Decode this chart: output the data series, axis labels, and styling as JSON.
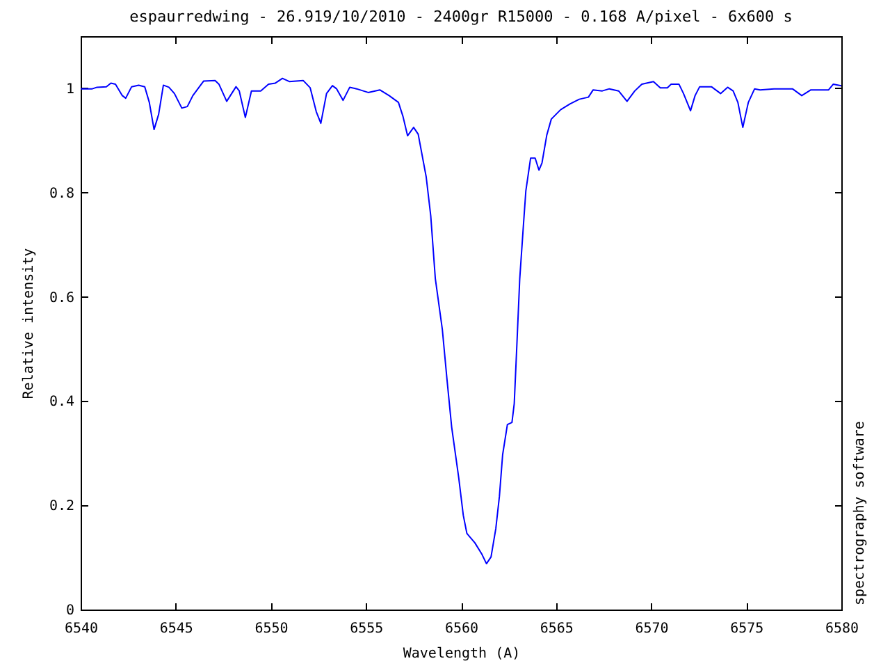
{
  "chart_data": {
    "type": "line",
    "title": "espaurredwing - 26.919/10/2010 - 2400gr R15000 - 0.168 A/pixel - 6x600 s",
    "xlabel": "Wavelength (A)",
    "ylabel": "Relative intensity",
    "annotations": [
      "spectrography software"
    ],
    "x": [
      6540.0,
      6540.61,
      6540.86,
      6541.35,
      6541.59,
      6541.83,
      6542.19,
      6542.37,
      6542.68,
      6543.05,
      6543.37,
      6543.61,
      6543.86,
      6544.1,
      6544.35,
      6544.64,
      6544.93,
      6545.32,
      6545.61,
      6545.9,
      6546.47,
      6547.07,
      6547.27,
      6547.68,
      6548.17,
      6548.34,
      6548.66,
      6548.98,
      6549.47,
      6549.88,
      6550.24,
      6550.61,
      6550.97,
      6551.7,
      6552.07,
      6552.39,
      6552.63,
      6552.93,
      6553.24,
      6553.46,
      6553.8,
      6554.15,
      6554.51,
      6555.12,
      6555.73,
      6556.22,
      6556.71,
      6556.95,
      6557.19,
      6557.51,
      6557.75,
      6558.17,
      6558.41,
      6558.65,
      6559.02,
      6559.27,
      6559.51,
      6559.88,
      6560.12,
      6560.31,
      6560.73,
      6561.1,
      6561.34,
      6561.58,
      6561.83,
      6562.02,
      6562.19,
      6562.44,
      6562.68,
      6562.8,
      6562.93,
      6563.09,
      6563.29,
      6563.41,
      6563.66,
      6563.9,
      6564.1,
      6564.26,
      6564.51,
      6564.75,
      6565.24,
      6565.73,
      6566.22,
      6566.7,
      6566.95,
      6567.43,
      6567.8,
      6568.29,
      6568.73,
      6569.14,
      6569.51,
      6570.12,
      6570.48,
      6570.85,
      6571.05,
      6571.46,
      6571.7,
      6572.07,
      6572.31,
      6572.55,
      6573.17,
      6573.65,
      6574.02,
      6574.31,
      6574.56,
      6574.82,
      6575.11,
      6575.44,
      6575.73,
      6576.46,
      6577.43,
      6577.92,
      6578.4,
      6579.33,
      6579.58,
      6579.99
    ],
    "series": [
      {
        "color": "#0000ff",
        "values": [
          0.999,
          0.999,
          1.002,
          1.003,
          1.01,
          1.008,
          0.986,
          0.981,
          1.003,
          1.006,
          1.003,
          0.973,
          0.921,
          0.95,
          1.006,
          1.002,
          0.99,
          0.962,
          0.965,
          0.986,
          1.014,
          1.015,
          1.008,
          0.975,
          1.003,
          0.995,
          0.944,
          0.995,
          0.995,
          1.008,
          1.01,
          1.019,
          1.013,
          1.015,
          1.001,
          0.955,
          0.933,
          0.99,
          1.005,
          0.999,
          0.977,
          1.002,
          0.999,
          0.992,
          0.997,
          0.986,
          0.973,
          0.946,
          0.909,
          0.925,
          0.912,
          0.83,
          0.755,
          0.635,
          0.537,
          0.439,
          0.35,
          0.253,
          0.181,
          0.146,
          0.128,
          0.106,
          0.088,
          0.101,
          0.155,
          0.217,
          0.297,
          0.355,
          0.359,
          0.395,
          0.501,
          0.635,
          0.741,
          0.803,
          0.866,
          0.866,
          0.843,
          0.857,
          0.91,
          0.941,
          0.959,
          0.97,
          0.979,
          0.983,
          0.997,
          0.995,
          0.999,
          0.995,
          0.975,
          0.995,
          1.008,
          1.013,
          1.001,
          1.001,
          1.008,
          1.008,
          0.99,
          0.957,
          0.986,
          1.003,
          1.003,
          0.99,
          1.002,
          0.995,
          0.973,
          0.925,
          0.973,
          0.999,
          0.997,
          0.999,
          0.999,
          0.986,
          0.997,
          0.997,
          1.008,
          1.005
        ]
      }
    ],
    "xlim": [
      6540,
      6580
    ],
    "ylim": [
      0,
      1.1
    ],
    "xticks": [
      6540,
      6545,
      6550,
      6555,
      6560,
      6565,
      6570,
      6575,
      6580
    ],
    "yticks": [
      0,
      0.2,
      0.4,
      0.6,
      0.8,
      1
    ],
    "grid": false,
    "marker": "none",
    "line_style": "solid"
  }
}
